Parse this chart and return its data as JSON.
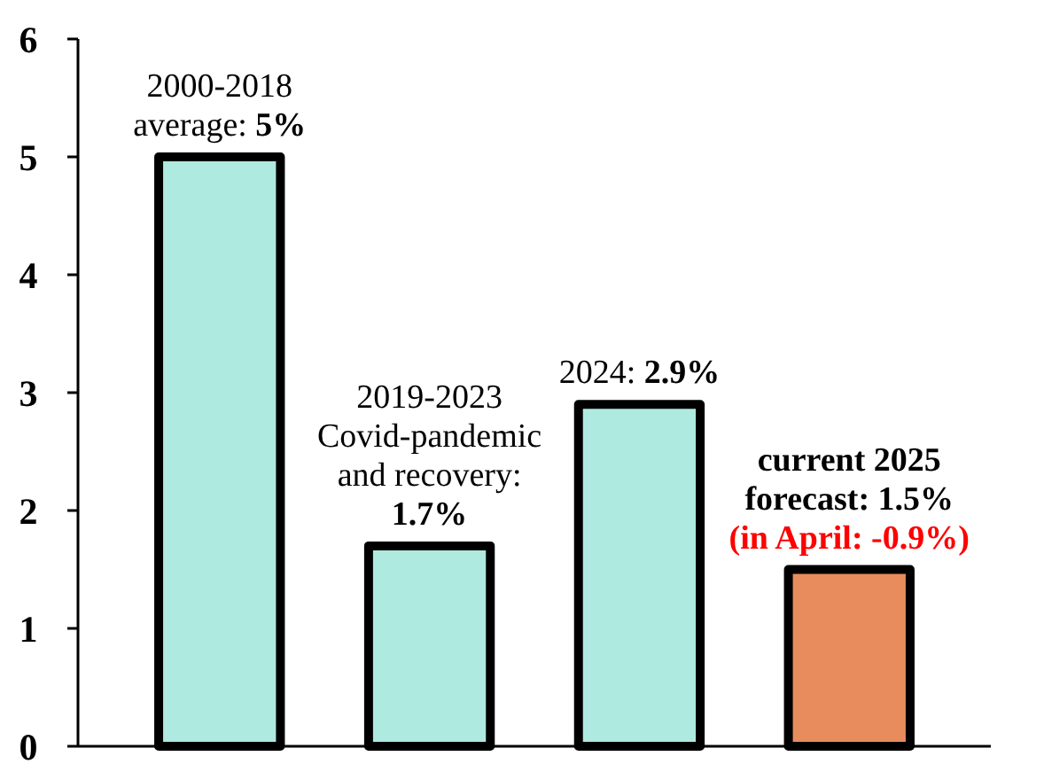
{
  "chart_data": {
    "type": "bar",
    "categories": [
      null,
      null,
      null,
      null
    ],
    "values": [
      5,
      1.7,
      2.9,
      1.5
    ],
    "colors": [
      "#aeeae0",
      "#aeeae0",
      "#aeeae0",
      "#e88c5e"
    ],
    "value_labels": [
      "5%",
      "1.7%",
      "2.9%",
      "1.5%"
    ],
    "annotations": [
      "2000-2018\naverage:",
      "2019-2023\nCovid-pandemic\nand recovery:",
      "2024:",
      "current 2025\nforecast:",
      "(in April: -0.9%)"
    ],
    "ylim": [
      0,
      6
    ],
    "yticks": [
      0,
      1,
      2,
      3,
      4,
      5,
      6
    ],
    "grid": false
  }
}
